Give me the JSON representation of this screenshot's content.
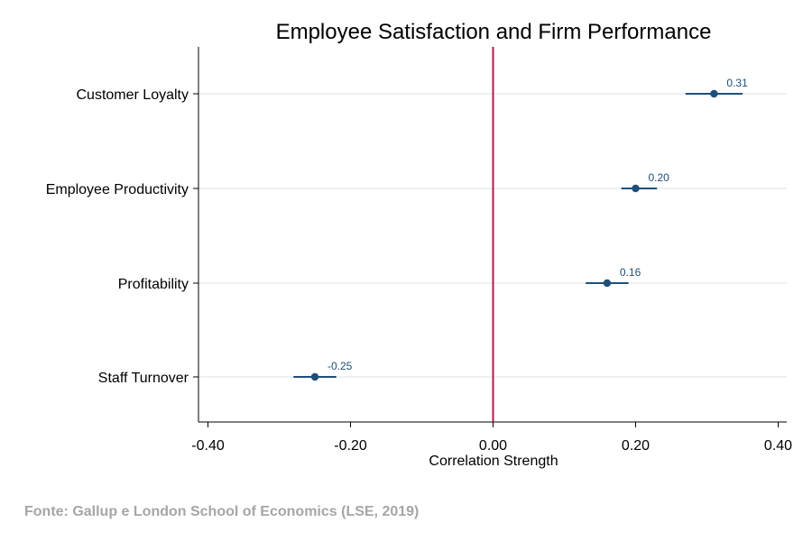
{
  "chart_data": {
    "type": "scatter",
    "title": "Employee Satisfaction and Firm Performance",
    "xlabel": "Correlation Strength",
    "ylabel": "",
    "xlim": [
      -0.42,
      0.42
    ],
    "x_ticks": [
      -0.4,
      -0.2,
      0.0,
      0.2,
      0.4
    ],
    "x_tick_labels": [
      "-0.40",
      "-0.20",
      "0.00",
      "0.20",
      "0.40"
    ],
    "reference_line": {
      "x": 0.0,
      "color": "#b5174f"
    },
    "grid": true,
    "marker_color": "#1f4e79",
    "categories": [
      "Customer Loyalty",
      "Employee Productivity",
      "Profitability",
      "Staff Turnover"
    ],
    "points": [
      {
        "label": "Customer Loyalty",
        "value": 0.31,
        "ci_low": 0.27,
        "ci_high": 0.35,
        "value_label": "0.31"
      },
      {
        "label": "Employee Productivity",
        "value": 0.2,
        "ci_low": 0.18,
        "ci_high": 0.23,
        "value_label": "0.20"
      },
      {
        "label": "Profitability",
        "value": 0.16,
        "ci_low": 0.13,
        "ci_high": 0.19,
        "value_label": "0.16"
      },
      {
        "label": "Staff Turnover",
        "value": -0.25,
        "ci_low": -0.28,
        "ci_high": -0.22,
        "value_label": "-0.25"
      }
    ]
  },
  "source": "Fonte: Gallup e London School of Economics (LSE, 2019)"
}
